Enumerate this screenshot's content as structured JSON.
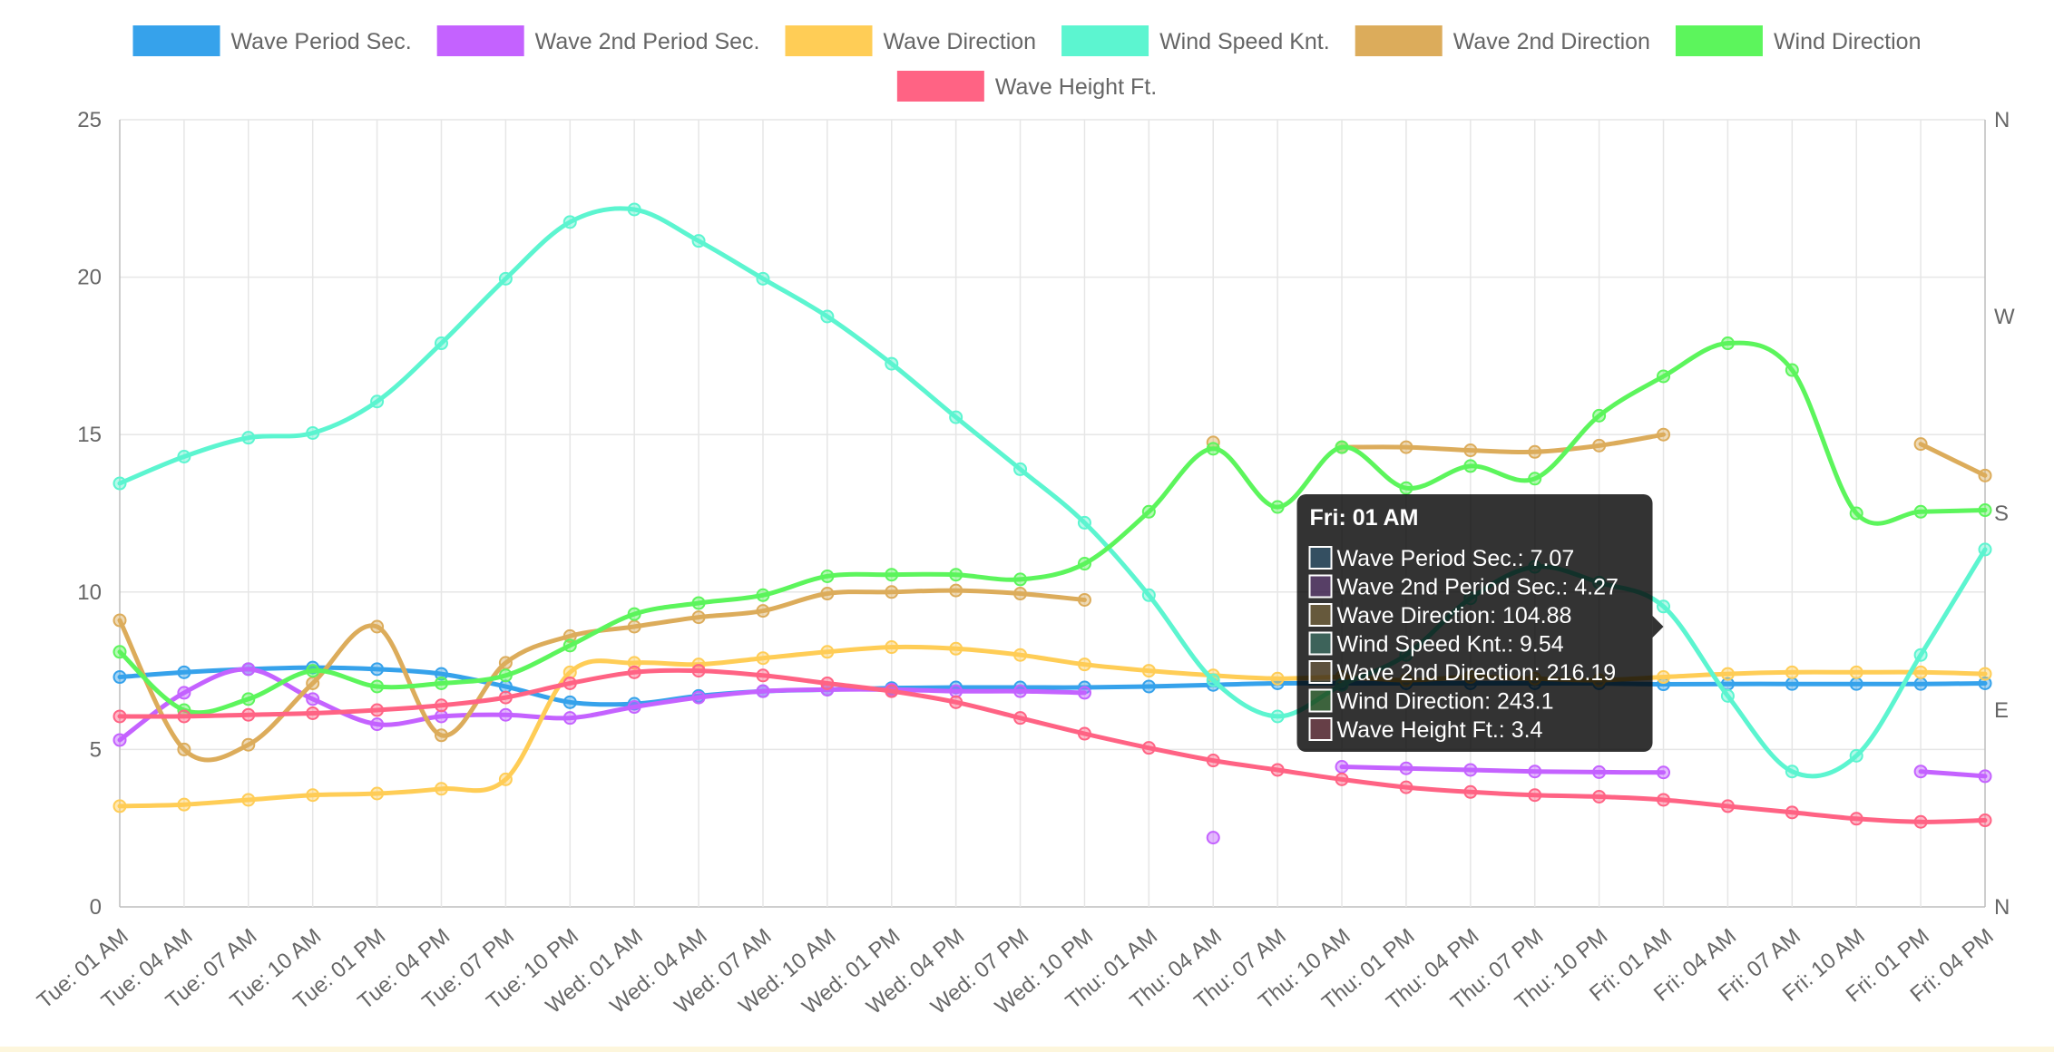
{
  "chart_data": {
    "type": "line",
    "x": [
      "Tue: 01 AM",
      "Tue: 04 AM",
      "Tue: 07 AM",
      "Tue: 10 AM",
      "Tue: 01 PM",
      "Tue: 04 PM",
      "Tue: 07 PM",
      "Tue: 10 PM",
      "Wed: 01 AM",
      "Wed: 04 AM",
      "Wed: 07 AM",
      "Wed: 10 AM",
      "Wed: 01 PM",
      "Wed: 04 PM",
      "Wed: 07 PM",
      "Wed: 10 PM",
      "Thu: 01 AM",
      "Thu: 04 AM",
      "Thu: 07 AM",
      "Thu: 10 AM",
      "Thu: 01 PM",
      "Thu: 04 PM",
      "Thu: 07 PM",
      "Thu: 10 PM",
      "Fri: 01 AM",
      "Fri: 04 AM",
      "Fri: 07 AM",
      "Fri: 10 AM",
      "Fri: 01 PM",
      "Fri: 04 PM"
    ],
    "y_left": {
      "min": 0,
      "max": 25,
      "ticks": [
        0,
        5,
        10,
        15,
        20,
        25
      ]
    },
    "y_right": {
      "ticks": [
        "N",
        "E",
        "S",
        "W",
        "N"
      ]
    },
    "grid": true,
    "legend_position": "top",
    "series": [
      {
        "name": "Wave Period Sec.",
        "color": "#36a2eb",
        "values": [
          7.3,
          7.45,
          7.55,
          7.6,
          7.55,
          7.4,
          7.0,
          6.5,
          6.45,
          6.7,
          6.85,
          6.9,
          6.95,
          6.97,
          6.97,
          6.97,
          7.0,
          7.05,
          7.1,
          7.1,
          7.1,
          7.1,
          7.1,
          7.1,
          7.07,
          7.08,
          7.08,
          7.08,
          7.08,
          7.1
        ]
      },
      {
        "name": "Wave 2nd Period Sec.",
        "color": "#c462ff",
        "values": [
          5.3,
          6.8,
          7.55,
          6.6,
          5.8,
          6.05,
          6.1,
          6.0,
          6.35,
          6.65,
          6.85,
          6.9,
          6.9,
          6.85,
          6.85,
          6.8,
          null,
          2.2,
          null,
          4.45,
          4.4,
          4.35,
          4.3,
          4.28,
          4.27,
          null,
          null,
          null,
          4.3,
          4.15
        ]
      },
      {
        "name": "Wave Direction",
        "color": "#ffcd56",
        "values": [
          3.2,
          3.25,
          3.4,
          3.55,
          3.6,
          3.75,
          4.05,
          7.45,
          7.75,
          7.7,
          7.9,
          8.1,
          8.25,
          8.2,
          8.0,
          7.7,
          7.5,
          7.35,
          7.25,
          7.3,
          7.2,
          7.3,
          7.25,
          7.2,
          7.3,
          7.4,
          7.45,
          7.45,
          7.45,
          7.4
        ]
      },
      {
        "name": "Wind Speed Knt.",
        "color": "#5cf5d0",
        "values": [
          13.45,
          14.3,
          14.9,
          15.05,
          16.05,
          17.9,
          19.95,
          21.75,
          22.15,
          21.15,
          19.95,
          18.75,
          17.25,
          15.55,
          13.9,
          12.2,
          9.9,
          7.2,
          6.05,
          7.05,
          8.0,
          9.8,
          10.8,
          10.3,
          9.54,
          6.7,
          4.3,
          4.8,
          8.0,
          11.35
        ]
      },
      {
        "name": "Wave 2nd Direction",
        "color": "#dcac5b",
        "values": [
          9.1,
          5.0,
          5.15,
          7.1,
          8.9,
          5.45,
          7.75,
          8.6,
          8.9,
          9.2,
          9.4,
          9.95,
          10.0,
          10.05,
          9.95,
          9.75,
          null,
          14.75,
          null,
          14.6,
          14.6,
          14.5,
          14.45,
          14.65,
          15.0,
          null,
          null,
          null,
          14.7,
          13.7
        ]
      },
      {
        "name": "Wind Direction",
        "color": "#5cf55c",
        "values": [
          8.1,
          6.25,
          6.6,
          7.5,
          7.0,
          7.1,
          7.35,
          8.3,
          9.3,
          9.65,
          9.9,
          10.5,
          10.55,
          10.55,
          10.4,
          10.9,
          12.55,
          14.55,
          12.7,
          14.6,
          13.3,
          14.0,
          13.6,
          15.6,
          16.85,
          17.9,
          17.05,
          12.5,
          12.55,
          12.6
        ]
      },
      {
        "name": "Wave Height Ft.",
        "color": "#ff6384",
        "values": [
          6.05,
          6.05,
          6.1,
          6.15,
          6.25,
          6.4,
          6.65,
          7.1,
          7.45,
          7.5,
          7.35,
          7.1,
          6.85,
          6.5,
          6.0,
          5.5,
          5.05,
          4.65,
          4.35,
          4.05,
          3.8,
          3.65,
          3.55,
          3.5,
          3.4,
          3.2,
          3.0,
          2.8,
          2.7,
          2.75
        ]
      }
    ],
    "tooltip": {
      "title": "Fri: 01 AM",
      "rows": [
        "Wave Period Sec.: 7.07",
        "Wave 2nd Period Sec.: 4.27",
        "Wave Direction: 104.88",
        "Wind Speed Knt.: 9.54",
        "Wave 2nd Direction: 216.19",
        "Wind Direction: 243.1",
        "Wave Height Ft.: 3.4"
      ]
    }
  }
}
